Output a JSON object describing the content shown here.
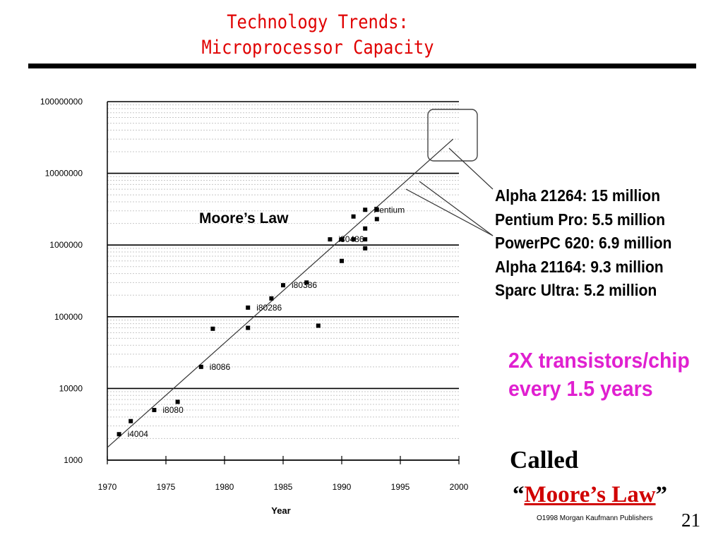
{
  "slide": {
    "title_line1": "Technology Trends:",
    "title_line2": "Microprocessor Capacity",
    "chip_list": [
      "Alpha 21264: 15 million",
      "Pentium Pro: 5.5 million",
      "PowerPC 620: 6.9 million",
      "Alpha 21164: 9.3 million",
      "Sparc Ultra: 5.2 million"
    ],
    "claim_line1": "2X transistors/chip",
    "claim_line2": "every 1.5 years",
    "called": "Called",
    "open_quote": "“",
    "moores_law": "Moore’s Law",
    "close_quote": "”",
    "credit": "O1998 Morgan Kaufmann Publishers",
    "slide_number": "21",
    "colors": {
      "title": "#e00000",
      "claim": "#e020d0",
      "emphasis": "#d00000"
    }
  },
  "chart_data": {
    "type": "scatter",
    "title": "",
    "annotation": "Moore’s Law",
    "xlabel": "Year",
    "ylabel": "",
    "xlim": [
      1970,
      2000
    ],
    "ylim": [
      1000,
      100000000
    ],
    "y_scale": "log",
    "grid": true,
    "x_ticks": [
      1970,
      1975,
      1980,
      1985,
      1990,
      1995,
      2000
    ],
    "y_ticks": [
      "1000",
      "10000",
      "100000",
      "1000000",
      "10000000",
      "100000000"
    ],
    "trend_line": {
      "x": [
        1970,
        1999.5
      ],
      "y": [
        1500,
        30000000
      ]
    },
    "series": [
      {
        "points": [
          {
            "x": 1971,
            "y": 2300,
            "label": "i4004"
          },
          {
            "x": 1972,
            "y": 3500,
            "label": ""
          },
          {
            "x": 1974,
            "y": 5000,
            "label": "i8080"
          },
          {
            "x": 1976,
            "y": 6500,
            "label": ""
          },
          {
            "x": 1978,
            "y": 20000,
            "label": "i8086"
          },
          {
            "x": 1979,
            "y": 68000,
            "label": ""
          },
          {
            "x": 1982,
            "y": 134000,
            "label": "i80286"
          },
          {
            "x": 1982,
            "y": 70000,
            "label": ""
          },
          {
            "x": 1984,
            "y": 180000,
            "label": ""
          },
          {
            "x": 1985,
            "y": 275000,
            "label": "i80386"
          },
          {
            "x": 1987,
            "y": 300000,
            "label": ""
          },
          {
            "x": 1988,
            "y": 75000,
            "label": ""
          },
          {
            "x": 1989,
            "y": 1200000,
            "label": "i80486"
          },
          {
            "x": 1990,
            "y": 1200000,
            "label": ""
          },
          {
            "x": 1990,
            "y": 600000,
            "label": ""
          },
          {
            "x": 1991,
            "y": 2500000,
            "label": ""
          },
          {
            "x": 1991,
            "y": 1200000,
            "label": ""
          },
          {
            "x": 1992,
            "y": 3100000,
            "label": "Pentium"
          },
          {
            "x": 1992,
            "y": 1700000,
            "label": ""
          },
          {
            "x": 1992,
            "y": 1200000,
            "label": ""
          },
          {
            "x": 1992,
            "y": 900000,
            "label": ""
          },
          {
            "x": 1993,
            "y": 3100000,
            "label": ""
          },
          {
            "x": 1993,
            "y": 2300000,
            "label": ""
          }
        ]
      }
    ]
  }
}
